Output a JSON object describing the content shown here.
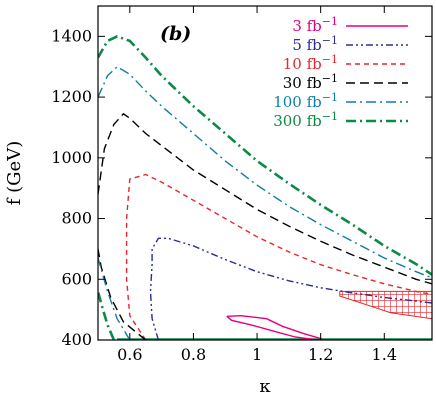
{
  "chart_data": {
    "type": "line",
    "panel_label": "(b)",
    "xlabel": "κ",
    "ylabel": "f (GeV)",
    "xlim": [
      0.5,
      1.55
    ],
    "ylim": [
      400,
      1500
    ],
    "x_ticks": [
      0.6,
      0.8,
      1,
      1.2,
      1.4
    ],
    "x_tick_labels": [
      "0.6",
      "0.8",
      "1",
      "1.2",
      "1.4"
    ],
    "y_ticks": [
      400,
      600,
      800,
      1000,
      1200,
      1400
    ],
    "y_tick_labels": [
      "400",
      "600",
      "800",
      "1000",
      "1200",
      "1400"
    ],
    "grid": false,
    "legend_position": "top-right",
    "series": [
      {
        "name": "3 fb",
        "exponent": "−1",
        "color": "#e6007e",
        "dash": "solid",
        "x": [
          0.905,
          0.95,
          1.03,
          1.08,
          1.15,
          1.2,
          1.19,
          1.12,
          1.05,
          0.98,
          0.92,
          0.905
        ],
        "y": [
          478,
          480,
          470,
          445,
          420,
          405,
          400,
          410,
          430,
          450,
          465,
          478
        ]
      },
      {
        "name": "5 fb",
        "exponent": "−1",
        "color": "#2b2e8e",
        "dash": "dashdotdot",
        "x": [
          0.69,
          0.67,
          0.665,
          0.67,
          0.67,
          0.69,
          0.72,
          0.8,
          0.9,
          1.0,
          1.1,
          1.2,
          1.3,
          1.4,
          1.5,
          1.55
        ],
        "y": [
          400,
          470,
          560,
          650,
          700,
          735,
          735,
          710,
          665,
          625,
          595,
          572,
          555,
          540,
          528,
          522
        ]
      },
      {
        "name": "10 fb",
        "exponent": "−1",
        "color": "#e8262d",
        "dash": "short",
        "x": [
          0.65,
          0.6,
          0.59,
          0.59,
          0.6,
          0.65,
          0.7,
          0.8,
          0.9,
          1.0,
          1.1,
          1.2,
          1.3,
          1.4,
          1.5,
          1.55
        ],
        "y": [
          400,
          480,
          600,
          800,
          930,
          945,
          920,
          860,
          800,
          740,
          690,
          648,
          615,
          585,
          560,
          550
        ]
      },
      {
        "name": "30 fb",
        "exponent": "−1",
        "color": "#000000",
        "dash": "long",
        "x": [
          0.65,
          0.58,
          0.54,
          0.51,
          0.5
        ],
        "y": [
          400,
          460,
          540,
          640,
          700
        ],
        "x2": [
          0.5,
          0.52,
          0.55,
          0.58,
          0.6,
          0.65,
          0.7,
          0.8,
          0.9,
          1.0,
          1.1,
          1.2,
          1.3,
          1.4,
          1.5,
          1.55
        ],
        "y2": [
          880,
          1030,
          1110,
          1145,
          1130,
          1080,
          1040,
          960,
          895,
          830,
          775,
          725,
          680,
          640,
          600,
          585
        ]
      },
      {
        "name": "100 fb",
        "exponent": "−1",
        "color": "#0e7ea8",
        "dash": "dashdot",
        "x": [
          0.6,
          0.56,
          0.53,
          0.5
        ],
        "y": [
          400,
          470,
          560,
          670
        ],
        "x2": [
          0.5,
          0.53,
          0.56,
          0.6,
          0.65,
          0.7,
          0.8,
          0.9,
          1.0,
          1.1,
          1.2,
          1.3,
          1.4,
          1.5,
          1.55
        ],
        "y2": [
          1200,
          1270,
          1300,
          1275,
          1220,
          1170,
          1080,
          990,
          910,
          840,
          780,
          725,
          670,
          625,
          605
        ]
      },
      {
        "name": "300 fb",
        "exponent": "−1",
        "color": "#0a8a45",
        "dash": "dashdot",
        "x": [
          0.55,
          0.53,
          0.51,
          0.5
        ],
        "y": [
          400,
          450,
          520,
          560
        ],
        "x2": [
          0.5,
          0.53,
          0.56,
          0.6,
          0.65,
          0.7,
          0.8,
          0.9,
          1.0,
          1.1,
          1.2,
          1.3,
          1.4,
          1.5,
          1.55
        ],
        "y2": [
          1330,
          1385,
          1400,
          1385,
          1330,
          1270,
          1170,
          1080,
          990,
          915,
          845,
          780,
          710,
          650,
          615
        ]
      }
    ],
    "bottom_line": {
      "color": "#0a8a45",
      "x": [
        0.56,
        1.55
      ],
      "y": [
        402,
        402
      ]
    },
    "hatched_region": {
      "color": "#e8262d",
      "x": [
        1.26,
        1.55,
        1.55,
        1.42,
        1.26
      ],
      "y": [
        560,
        560,
        470,
        490,
        545
      ]
    }
  }
}
